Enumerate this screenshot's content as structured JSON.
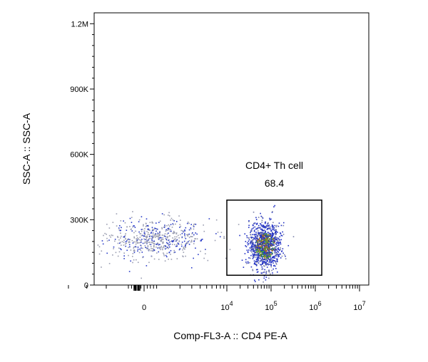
{
  "chart_data": {
    "type": "scatter",
    "title": "",
    "xlabel": "Comp-FL3-A :: CD4 PE-A",
    "ylabel": "SSC-A :: SSC-A",
    "x_scale": "biexponential",
    "y_scale": "linear",
    "ylim": [
      0,
      1250000
    ],
    "y_ticks": [
      {
        "value": 0,
        "label": "0"
      },
      {
        "value": 300000,
        "label": "300K"
      },
      {
        "value": 600000,
        "label": "600K"
      },
      {
        "value": 900000,
        "label": "900K"
      },
      {
        "value": 1200000,
        "label": "1.2M"
      }
    ],
    "x_ticks": [
      {
        "value": 0,
        "base": "0",
        "exp": ""
      },
      {
        "value": 10000,
        "base": "10",
        "exp": "4"
      },
      {
        "value": 100000,
        "base": "10",
        "exp": "5"
      },
      {
        "value": 1000000,
        "base": "10",
        "exp": "6"
      },
      {
        "value": 10000000,
        "base": "10",
        "exp": "7"
      }
    ],
    "populations": [
      {
        "x_center": 500,
        "x_spread": 2200,
        "y_center": 215000,
        "y_spread": 45000,
        "count": 600,
        "color": "#8a8fa6"
      },
      {
        "x_center": 70000,
        "x_spread_log10": 0.17,
        "y_center": 180000,
        "y_spread": 55000,
        "count": 1200,
        "color": "#1f2fc4"
      }
    ],
    "gates": [
      {
        "name": "CD4+ Th cell",
        "percent": "68.4",
        "x_min": 10000,
        "x_max": 1400000,
        "y_min": 45000,
        "y_max": 390000
      }
    ],
    "grid": false,
    "legend": "none"
  }
}
